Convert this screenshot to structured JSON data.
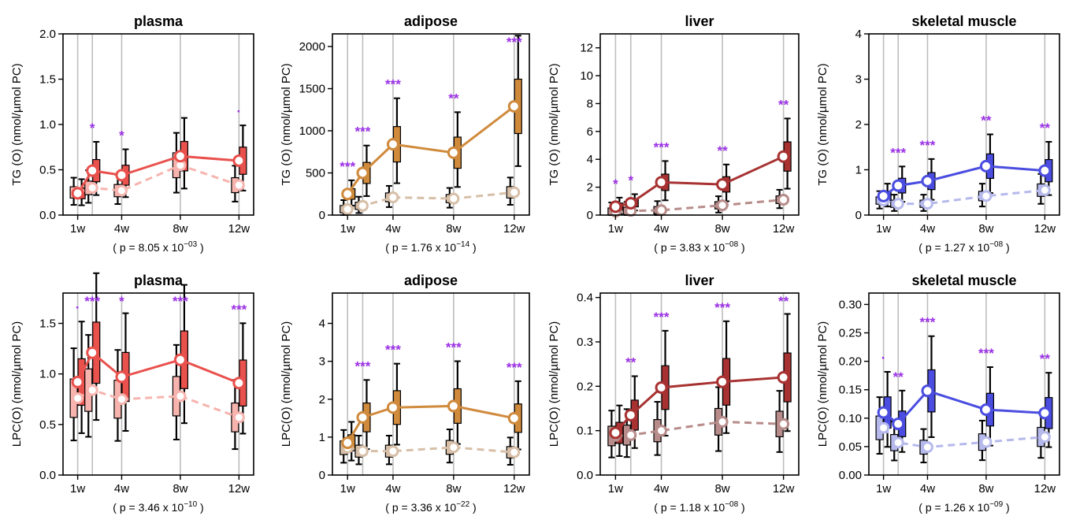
{
  "chart_data": [
    {
      "type": "box",
      "title": "plasma",
      "ylabel": "TG (O) (nmol/µmol PC)",
      "ylim": [
        0,
        2.0
      ],
      "yticks": [
        "0.0",
        "0.5",
        "1.0",
        "1.5",
        "2.0"
      ],
      "x_labels": [
        "1w",
        "4w",
        "8w",
        "12w"
      ],
      "p_label": "( p = 8.05 x 10",
      "p_exp": "−03",
      "color_treat": "#e9514d",
      "color_ctrl": "#f7b4ae",
      "times": [
        1,
        2,
        4,
        8,
        12
      ],
      "control_means": [
        0.25,
        0.3,
        0.27,
        0.55,
        0.33
      ],
      "treat_means": [
        0.24,
        0.49,
        0.44,
        0.65,
        0.6
      ],
      "significance": [
        "",
        "*",
        "*",
        "",
        "·"
      ]
    },
    {
      "type": "box",
      "title": "adipose",
      "ylabel": "TG (O) (nmol/µmol PC)",
      "ylim": [
        0,
        2150
      ],
      "yticks": [
        "0",
        "500",
        "1000",
        "1500",
        "2000"
      ],
      "x_labels": [
        "1w",
        "4w",
        "8w",
        "12w"
      ],
      "p_label": "( p = 1.76 x 10",
      "p_exp": "−14",
      "color_treat": "#d08a3c",
      "color_ctrl": "#d7bfa8",
      "times": [
        1,
        2,
        4,
        8,
        12
      ],
      "control_means": [
        70,
        110,
        210,
        195,
        270
      ],
      "treat_means": [
        250,
        500,
        840,
        740,
        1290
      ],
      "significance": [
        "***",
        "***",
        "***",
        "**",
        "***"
      ]
    },
    {
      "type": "box",
      "title": "liver",
      "ylabel": "TG (O) (nmol/µmol PC)",
      "ylim": [
        0,
        13
      ],
      "yticks": [
        "0",
        "2",
        "4",
        "6",
        "8",
        "10",
        "12"
      ],
      "x_labels": [
        "1w",
        "4w",
        "8w",
        "12w"
      ],
      "p_label": "( p = 3.83 x 10",
      "p_exp": "−08",
      "color_treat": "#a83232",
      "color_ctrl": "#b78c8a",
      "times": [
        1,
        2,
        4,
        8,
        12
      ],
      "control_means": [
        0.25,
        0.3,
        0.35,
        0.7,
        1.1
      ],
      "treat_means": [
        0.6,
        0.85,
        2.35,
        2.2,
        4.2
      ],
      "significance": [
        "*",
        "*",
        "***",
        "**",
        "**"
      ]
    },
    {
      "type": "box",
      "title": "skeletal muscle",
      "ylabel": "TG (O) (nmol/µmol PC)",
      "ylim": [
        0,
        4
      ],
      "yticks": [
        "0",
        "1",
        "2",
        "3",
        "4"
      ],
      "x_labels": [
        "1w",
        "4w",
        "8w",
        "12w"
      ],
      "p_label": "( p = 1.27 x 10",
      "p_exp": "−08",
      "color_treat": "#4a4de0",
      "color_ctrl": "#b6b9ec",
      "times": [
        1,
        2,
        4,
        8,
        12
      ],
      "control_means": [
        0.32,
        0.25,
        0.25,
        0.42,
        0.55
      ],
      "treat_means": [
        0.42,
        0.65,
        0.75,
        1.08,
        0.98
      ],
      "significance": [
        "",
        "***",
        "***",
        "**",
        "**"
      ]
    },
    {
      "type": "box",
      "title": "plasma",
      "ylabel": "LPC(O) (nmol/µmol PC)",
      "ylim": [
        0,
        1.8
      ],
      "yticks": [
        "0.0",
        "0.5",
        "1.0",
        "1.5"
      ],
      "x_labels": [
        "1w",
        "4w",
        "8w",
        "12w"
      ],
      "p_label": "( p = 3.46 x 10",
      "p_exp": "−10",
      "color_treat": "#e9514d",
      "color_ctrl": "#f7b4ae",
      "times": [
        1,
        2,
        4,
        8,
        12
      ],
      "control_means": [
        0.76,
        0.84,
        0.75,
        0.78,
        0.57
      ],
      "treat_means": [
        0.92,
        1.21,
        0.97,
        1.14,
        0.91
      ],
      "significance": [
        "·",
        "***",
        "*",
        "***",
        "***"
      ]
    },
    {
      "type": "box",
      "title": "adipose",
      "ylabel": "LPC(O) (nmol/µmol PC)",
      "ylim": [
        0,
        4.8
      ],
      "yticks": [
        "0",
        "1",
        "2",
        "3",
        "4"
      ],
      "x_labels": [
        "1w",
        "4w",
        "8w",
        "12w"
      ],
      "p_label": "( p = 3.36 x 10",
      "p_exp": "−22",
      "color_treat": "#d08a3c",
      "color_ctrl": "#d7bfa8",
      "times": [
        1,
        2,
        4,
        8,
        12
      ],
      "control_means": [
        0.72,
        0.63,
        0.63,
        0.73,
        0.6
      ],
      "treat_means": [
        0.85,
        1.52,
        1.78,
        1.82,
        1.5
      ],
      "significance": [
        "",
        "***",
        "***",
        "***",
        "***"
      ]
    },
    {
      "type": "box",
      "title": "liver",
      "ylabel": "LPC(O) (nmol/µmol PC)",
      "ylim": [
        0,
        0.41
      ],
      "yticks": [
        "0.0",
        "0.1",
        "0.2",
        "0.3",
        "0.4"
      ],
      "x_labels": [
        "1w",
        "4w",
        "8w",
        "12w"
      ],
      "p_label": "( p = 1.18 x 10",
      "p_exp": "−08",
      "color_treat": "#a83232",
      "color_ctrl": "#b78c8a",
      "times": [
        1,
        2,
        4,
        8,
        12
      ],
      "control_means": [
        0.088,
        0.09,
        0.1,
        0.12,
        0.115
      ],
      "treat_means": [
        0.095,
        0.135,
        0.197,
        0.21,
        0.22
      ],
      "significance": [
        "",
        "**",
        "***",
        "***",
        "**"
      ]
    },
    {
      "type": "box",
      "title": "skeletal muscle",
      "ylabel": "LPC(O) (nmol/µmol PC)",
      "ylim": [
        0,
        0.32
      ],
      "yticks": [
        "0.00",
        "0.05",
        "0.10",
        "0.15",
        "0.20",
        "0.25",
        "0.30"
      ],
      "x_labels": [
        "1w",
        "4w",
        "8w",
        "12w"
      ],
      "p_label": "( p = 1.26 x 10",
      "p_exp": "−09",
      "color_treat": "#4a4de0",
      "color_ctrl": "#b6b9ec",
      "times": [
        1,
        2,
        4,
        8,
        12
      ],
      "control_means": [
        0.083,
        0.057,
        0.049,
        0.058,
        0.067
      ],
      "treat_means": [
        0.11,
        0.09,
        0.148,
        0.115,
        0.109
      ],
      "significance": [
        "·",
        "**",
        "***",
        "***",
        "**"
      ]
    }
  ]
}
